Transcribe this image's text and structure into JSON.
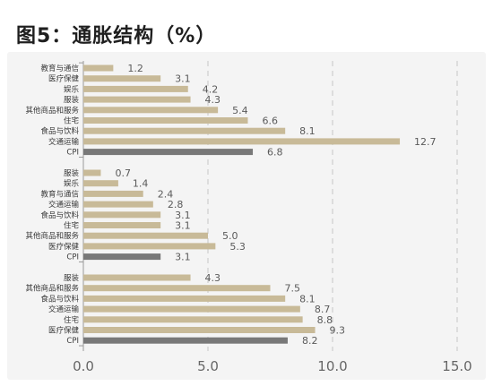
{
  "chart_data": {
    "type": "bar",
    "orientation": "horizontal",
    "title": "图5：通胀结构（%）",
    "xlim": [
      0,
      15
    ],
    "xticks": [
      {
        "value": 0,
        "label": "0.0"
      },
      {
        "value": 5,
        "label": "5.0"
      },
      {
        "value": 10,
        "label": "10.0"
      },
      {
        "value": 15,
        "label": "15.0"
      }
    ],
    "grid": true,
    "colors": {
      "components": "#c8ba98",
      "CPI": "#787878"
    },
    "groups": [
      {
        "bars": [
          {
            "category": "教育与通信",
            "value": 1.2,
            "data_label": "1.2"
          },
          {
            "category": "医疗保健",
            "value": 3.1,
            "data_label": "3.1"
          },
          {
            "category": "娱乐",
            "value": 4.2,
            "data_label": "4.2"
          },
          {
            "category": "服装",
            "value": 4.3,
            "data_label": "4.3"
          },
          {
            "category": "其他商品和服务",
            "value": 5.4,
            "data_label": "5.4"
          },
          {
            "category": "住宅",
            "value": 6.6,
            "data_label": "6.6"
          },
          {
            "category": "食品与饮料",
            "value": 8.1,
            "data_label": "8.1"
          },
          {
            "category": "交通运输",
            "value": 12.7,
            "data_label": "12.7"
          },
          {
            "category": "CPI",
            "value": 6.8,
            "data_label": "6.8"
          }
        ]
      },
      {
        "bars": [
          {
            "category": "服装",
            "value": 0.7,
            "data_label": "0.7"
          },
          {
            "category": "娱乐",
            "value": 1.4,
            "data_label": "1.4"
          },
          {
            "category": "教育与通信",
            "value": 2.4,
            "data_label": "2.4"
          },
          {
            "category": "交通运输",
            "value": 2.8,
            "data_label": "2.8"
          },
          {
            "category": "食品与饮料",
            "value": 3.1,
            "data_label": "3.1"
          },
          {
            "category": "住宅",
            "value": 3.1,
            "data_label": "3.1"
          },
          {
            "category": "其他商品和服务",
            "value": 5.0,
            "data_label": "5.0"
          },
          {
            "category": "医疗保健",
            "value": 5.3,
            "data_label": "5.3"
          },
          {
            "category": "CPI",
            "value": 3.1,
            "data_label": "3.1"
          }
        ]
      },
      {
        "bars": [
          {
            "category": "服装",
            "value": 4.3,
            "data_label": "4.3"
          },
          {
            "category": "其他商品和服务",
            "value": 7.5,
            "data_label": "7.5"
          },
          {
            "category": "食品与饮料",
            "value": 8.1,
            "data_label": "8.1"
          },
          {
            "category": "交通运输",
            "value": 8.7,
            "data_label": "8.7"
          },
          {
            "category": "住宅",
            "value": 8.8,
            "data_label": "8.8"
          },
          {
            "category": "医疗保健",
            "value": 9.3,
            "data_label": "9.3"
          },
          {
            "category": "CPI",
            "value": 8.2,
            "data_label": "8.2"
          }
        ]
      }
    ]
  }
}
